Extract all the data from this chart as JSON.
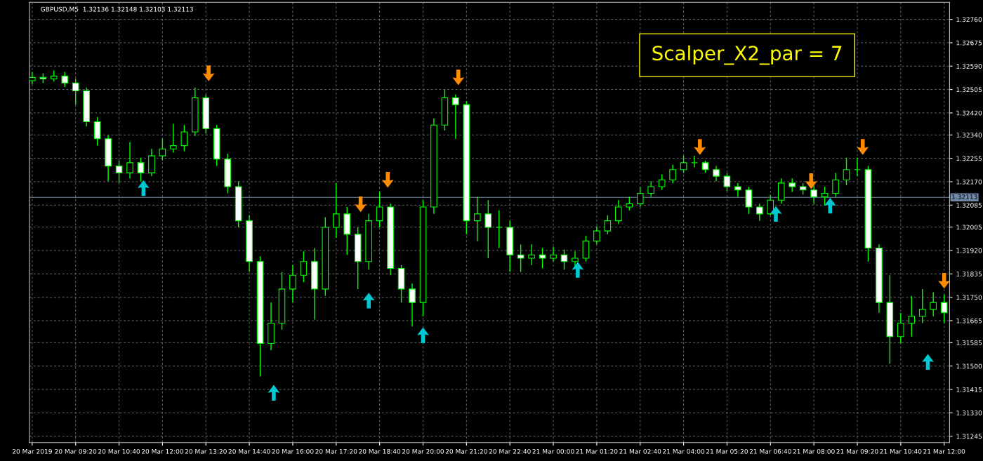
{
  "chart_data": {
    "type": "candlestick",
    "title": "GBPUSD,M5  1.32136 1.32148 1.32103 1.32113",
    "annotations": [
      "Scalper_X2_par = 7"
    ],
    "color": "#00ff00",
    "x": [
      "2019-03-20T08:00",
      "2019-03-20T08:20",
      "2019-03-20T08:40",
      "2019-03-20T09:00",
      "2019-03-20T09:20",
      "2019-03-20T09:40",
      "2019-03-20T10:00",
      "2019-03-20T10:20",
      "2019-03-20T10:40",
      "2019-03-20T11:00",
      "2019-03-20T11:20",
      "2019-03-20T11:40",
      "2019-03-20T12:00",
      "2019-03-20T12:20",
      "2019-03-20T12:40",
      "2019-03-20T13:00",
      "2019-03-20T13:20",
      "2019-03-20T13:40",
      "2019-03-20T14:00",
      "2019-03-20T14:20",
      "2019-03-20T14:40",
      "2019-03-20T15:00",
      "2019-03-20T15:20",
      "2019-03-20T15:40",
      "2019-03-20T16:00",
      "2019-03-20T16:20",
      "2019-03-20T16:40",
      "2019-03-20T17:00",
      "2019-03-20T17:20",
      "2019-03-20T17:40",
      "2019-03-20T18:00",
      "2019-03-20T18:20",
      "2019-03-20T18:40",
      "2019-03-20T19:00",
      "2019-03-20T19:20",
      "2019-03-20T19:40",
      "2019-03-20T20:00",
      "2019-03-20T20:20",
      "2019-03-20T20:40",
      "2019-03-20T21:00",
      "2019-03-20T21:20",
      "2019-03-20T21:40",
      "2019-03-20T22:00",
      "2019-03-20T22:20",
      "2019-03-20T22:40",
      "2019-03-20T23:00",
      "2019-03-20T23:20",
      "2019-03-20T23:40",
      "2019-03-21T00:00",
      "2019-03-21T00:20",
      "2019-03-21T00:40",
      "2019-03-21T01:00",
      "2019-03-21T01:20",
      "2019-03-21T01:40",
      "2019-03-21T02:00",
      "2019-03-21T02:20",
      "2019-03-21T02:40",
      "2019-03-21T03:00",
      "2019-03-21T03:20",
      "2019-03-21T03:40",
      "2019-03-21T04:00",
      "2019-03-21T04:20",
      "2019-03-21T04:40",
      "2019-03-21T05:00",
      "2019-03-21T05:20",
      "2019-03-21T05:40",
      "2019-03-21T06:00",
      "2019-03-21T06:20",
      "2019-03-21T06:40",
      "2019-03-21T07:00",
      "2019-03-21T07:20",
      "2019-03-21T07:40",
      "2019-03-21T08:00",
      "2019-03-21T08:20",
      "2019-03-21T08:40",
      "2019-03-21T09:00",
      "2019-03-21T09:20",
      "2019-03-21T09:40",
      "2019-03-21T10:00",
      "2019-03-21T10:20",
      "2019-03-21T10:40",
      "2019-03-21T11:00",
      "2019-03-21T11:20",
      "2019-03-21T11:40",
      "2019-03-21T12:00"
    ],
    "ohlc": [
      [
        1.32537,
        1.32569,
        1.32524,
        1.32549
      ],
      [
        1.32549,
        1.32564,
        1.32529,
        1.32544
      ],
      [
        1.32544,
        1.32574,
        1.32534,
        1.32554
      ],
      [
        1.32554,
        1.32569,
        1.32514,
        1.32529
      ],
      [
        1.32529,
        1.32544,
        1.3245,
        1.325
      ],
      [
        1.325,
        1.32512,
        1.32371,
        1.32388
      ],
      [
        1.32388,
        1.32405,
        1.32301,
        1.32326
      ],
      [
        1.32326,
        1.32338,
        1.32172,
        1.32227
      ],
      [
        1.32227,
        1.32247,
        1.32165,
        1.32202
      ],
      [
        1.32202,
        1.32314,
        1.32182,
        1.32239
      ],
      [
        1.32239,
        1.32257,
        1.32172,
        1.32202
      ],
      [
        1.32202,
        1.32289,
        1.3219,
        1.32264
      ],
      [
        1.32264,
        1.32326,
        1.32247,
        1.32289
      ],
      [
        1.32289,
        1.32381,
        1.32276,
        1.32301
      ],
      [
        1.32301,
        1.32376,
        1.32281,
        1.32351
      ],
      [
        1.32351,
        1.32512,
        1.32336,
        1.32475
      ],
      [
        1.32475,
        1.32487,
        1.32346,
        1.32363
      ],
      [
        1.32363,
        1.32376,
        1.32227,
        1.32252
      ],
      [
        1.32252,
        1.32271,
        1.32128,
        1.32152
      ],
      [
        1.32152,
        1.32172,
        1.32004,
        1.32028
      ],
      [
        1.32028,
        1.32048,
        1.31842,
        1.3188
      ],
      [
        1.3188,
        1.31899,
        1.31462,
        1.31582
      ],
      [
        1.31582,
        1.31731,
        1.31557,
        1.31656
      ],
      [
        1.31656,
        1.31842,
        1.31632,
        1.3178
      ],
      [
        1.3178,
        1.31867,
        1.31731,
        1.3183
      ],
      [
        1.3183,
        1.31917,
        1.31805,
        1.3188
      ],
      [
        1.3188,
        1.31929,
        1.31669,
        1.3178
      ],
      [
        1.3178,
        1.32041,
        1.31755,
        1.32004
      ],
      [
        1.32004,
        1.32165,
        1.31966,
        1.32053
      ],
      [
        1.32053,
        1.32078,
        1.31904,
        1.31979
      ],
      [
        1.31979,
        1.32004,
        1.3178,
        1.3188
      ],
      [
        1.3188,
        1.32053,
        1.3185,
        1.32028
      ],
      [
        1.32028,
        1.32133,
        1.32004,
        1.32078
      ],
      [
        1.32078,
        1.3209,
        1.3183,
        1.31855
      ],
      [
        1.31855,
        1.31867,
        1.31731,
        1.3178
      ],
      [
        1.3178,
        1.318,
        1.31644,
        1.31731
      ],
      [
        1.31731,
        1.32103,
        1.31681,
        1.32078
      ],
      [
        1.32078,
        1.324,
        1.32053,
        1.32376
      ],
      [
        1.32376,
        1.32505,
        1.32356,
        1.32475
      ],
      [
        1.32475,
        1.32487,
        1.32326,
        1.3245
      ],
      [
        1.3245,
        1.32462,
        1.31979,
        1.32028
      ],
      [
        1.32028,
        1.32115,
        1.31954,
        1.32053
      ],
      [
        1.32053,
        1.32103,
        1.31892,
        1.32004
      ],
      [
        1.32004,
        1.32066,
        1.31929,
        1.32004
      ],
      [
        1.32004,
        1.32028,
        1.31842,
        1.31904
      ],
      [
        1.31904,
        1.31942,
        1.31842,
        1.31892
      ],
      [
        1.31892,
        1.31942,
        1.31867,
        1.31904
      ],
      [
        1.31904,
        1.31929,
        1.31855,
        1.31892
      ],
      [
        1.31892,
        1.31934,
        1.3188,
        1.31904
      ],
      [
        1.31904,
        1.31924,
        1.3185,
        1.3188
      ],
      [
        1.3188,
        1.31917,
        1.3186,
        1.31892
      ],
      [
        1.31892,
        1.31974,
        1.3188,
        1.31954
      ],
      [
        1.31954,
        1.32008,
        1.31942,
        1.31991
      ],
      [
        1.31991,
        1.32048,
        1.31979,
        1.32028
      ],
      [
        1.32028,
        1.32103,
        1.32016,
        1.32078
      ],
      [
        1.32078,
        1.32115,
        1.32066,
        1.3209
      ],
      [
        1.3209,
        1.32152,
        1.32078,
        1.32128
      ],
      [
        1.32128,
        1.32172,
        1.32115,
        1.32152
      ],
      [
        1.32152,
        1.32197,
        1.3214,
        1.32177
      ],
      [
        1.32177,
        1.32232,
        1.32165,
        1.32214
      ],
      [
        1.32214,
        1.32264,
        1.32202,
        1.32239
      ],
      [
        1.32239,
        1.32264,
        1.32222,
        1.32239
      ],
      [
        1.32239,
        1.32247,
        1.32202,
        1.32214
      ],
      [
        1.32214,
        1.32227,
        1.32172,
        1.3219
      ],
      [
        1.3219,
        1.32202,
        1.32137,
        1.32152
      ],
      [
        1.32152,
        1.32165,
        1.32115,
        1.3214
      ],
      [
        1.3214,
        1.32152,
        1.32053,
        1.32078
      ],
      [
        1.32078,
        1.3209,
        1.32028,
        1.32053
      ],
      [
        1.32053,
        1.32123,
        1.32048,
        1.32103
      ],
      [
        1.32103,
        1.32182,
        1.3209,
        1.32165
      ],
      [
        1.32165,
        1.32182,
        1.32133,
        1.32152
      ],
      [
        1.32152,
        1.32165,
        1.32123,
        1.3214
      ],
      [
        1.3214,
        1.32157,
        1.3209,
        1.32115
      ],
      [
        1.32115,
        1.32152,
        1.32083,
        1.32128
      ],
      [
        1.32128,
        1.32202,
        1.32115,
        1.32177
      ],
      [
        1.32177,
        1.32257,
        1.32157,
        1.32214
      ],
      [
        1.32214,
        1.32257,
        1.3219,
        1.32214
      ],
      [
        1.32214,
        1.32227,
        1.3188,
        1.31929
      ],
      [
        1.31929,
        1.31942,
        1.31694,
        1.31731
      ],
      [
        1.31731,
        1.3183,
        1.31508,
        1.31607
      ],
      [
        1.31607,
        1.31694,
        1.31582,
        1.31656
      ],
      [
        1.31656,
        1.31755,
        1.31607,
        1.31681
      ],
      [
        1.31681,
        1.3178,
        1.31656,
        1.31706
      ],
      [
        1.31706,
        1.31768,
        1.31681,
        1.31731
      ],
      [
        1.31731,
        1.3176,
        1.31656,
        1.31694
      ]
    ],
    "series": [
      {
        "type": "scatter",
        "color": "#00c8d2",
        "x": [
          "2019-03-20T11:25",
          "2019-03-20T15:25",
          "2019-03-20T18:20",
          "2019-03-20T20:00",
          "2019-03-21T00:45",
          "2019-03-21T06:50",
          "2019-03-21T08:30",
          "2019-03-21T11:30"
        ],
        "values": [
          1.32147,
          1.31403,
          1.31738,
          1.31612,
          1.3185,
          1.32053,
          1.32083,
          1.31515
        ]
      },
      {
        "type": "scatter",
        "color": "#ff8c00",
        "x": [
          "2019-03-20T13:25",
          "2019-03-20T18:05",
          "2019-03-20T18:55",
          "2019-03-20T21:05",
          "2019-03-21T04:30",
          "2019-03-21T07:55",
          "2019-03-21T09:30",
          "2019-03-21T12:00"
        ],
        "values": [
          1.32564,
          1.32088,
          1.32177,
          1.32549,
          1.32296,
          1.32172,
          1.32296,
          1.3181
        ]
      }
    ],
    "ref_lines": [
      {
        "axis": "y",
        "value": 1.32113,
        "label": "1.32113",
        "color": "#6e8aa8"
      }
    ],
    "xlim": [
      "2019-03-20T07:55",
      "2019-03-21T12:10"
    ],
    "xticks": [
      {
        "value": "2019-03-20T08:00",
        "label": "20 Mar 2019"
      },
      {
        "value": "2019-03-20T09:20",
        "label": "20 Mar 09:20"
      },
      {
        "value": "2019-03-20T10:40",
        "label": "20 Mar 10:40"
      },
      {
        "value": "2019-03-20T12:00",
        "label": "20 Mar 12:00"
      },
      {
        "value": "2019-03-20T13:20",
        "label": "20 Mar 13:20"
      },
      {
        "value": "2019-03-20T14:40",
        "label": "20 Mar 14:40"
      },
      {
        "value": "2019-03-20T16:00",
        "label": "20 Mar 16:00"
      },
      {
        "value": "2019-03-20T17:20",
        "label": "20 Mar 17:20"
      },
      {
        "value": "2019-03-20T18:40",
        "label": "20 Mar 18:40"
      },
      {
        "value": "2019-03-20T20:00",
        "label": "20 Mar 20:00"
      },
      {
        "value": "2019-03-20T21:20",
        "label": "20 Mar 21:20"
      },
      {
        "value": "2019-03-20T22:40",
        "label": "20 Mar 22:40"
      },
      {
        "value": "2019-03-21T00:00",
        "label": "21 Mar 00:00"
      },
      {
        "value": "2019-03-21T01:20",
        "label": "21 Mar 01:20"
      },
      {
        "value": "2019-03-21T02:40",
        "label": "21 Mar 02:40"
      },
      {
        "value": "2019-03-21T04:00",
        "label": "21 Mar 04:00"
      },
      {
        "value": "2019-03-21T05:20",
        "label": "21 Mar 05:20"
      },
      {
        "value": "2019-03-21T06:40",
        "label": "21 Mar 06:40"
      },
      {
        "value": "2019-03-21T08:00",
        "label": "21 Mar 08:00"
      },
      {
        "value": "2019-03-21T09:20",
        "label": "21 Mar 09:20"
      },
      {
        "value": "2019-03-21T10:40",
        "label": "21 Mar 10:40"
      },
      {
        "value": "2019-03-21T12:00",
        "label": "21 Mar 12:00"
      }
    ],
    "ylim": [
      1.31222,
      1.32822
    ],
    "yticks": [
      {
        "value": 1.3276,
        "label": "1.32760"
      },
      {
        "value": 1.32675,
        "label": "1.32675"
      },
      {
        "value": 1.3259,
        "label": "1.32590"
      },
      {
        "value": 1.32505,
        "label": "1.32505"
      },
      {
        "value": 1.3242,
        "label": "1.32420"
      },
      {
        "value": 1.3234,
        "label": "1.32340"
      },
      {
        "value": 1.32255,
        "label": "1.32255"
      },
      {
        "value": 1.3217,
        "label": "1.32170"
      },
      {
        "value": 1.32085,
        "label": "1.32085"
      },
      {
        "value": 1.32005,
        "label": "1.32005"
      },
      {
        "value": 1.3192,
        "label": "1.31920"
      },
      {
        "value": 1.31835,
        "label": "1.31835"
      },
      {
        "value": 1.3175,
        "label": "1.31750"
      },
      {
        "value": 1.31665,
        "label": "1.31665"
      },
      {
        "value": 1.31585,
        "label": "1.31585"
      },
      {
        "value": 1.315,
        "label": "1.31500"
      },
      {
        "value": 1.31415,
        "label": "1.31415"
      },
      {
        "value": 1.3133,
        "label": "1.31330"
      },
      {
        "value": 1.31245,
        "label": "1.31245"
      }
    ],
    "grid": true,
    "line_style": "dashed"
  }
}
